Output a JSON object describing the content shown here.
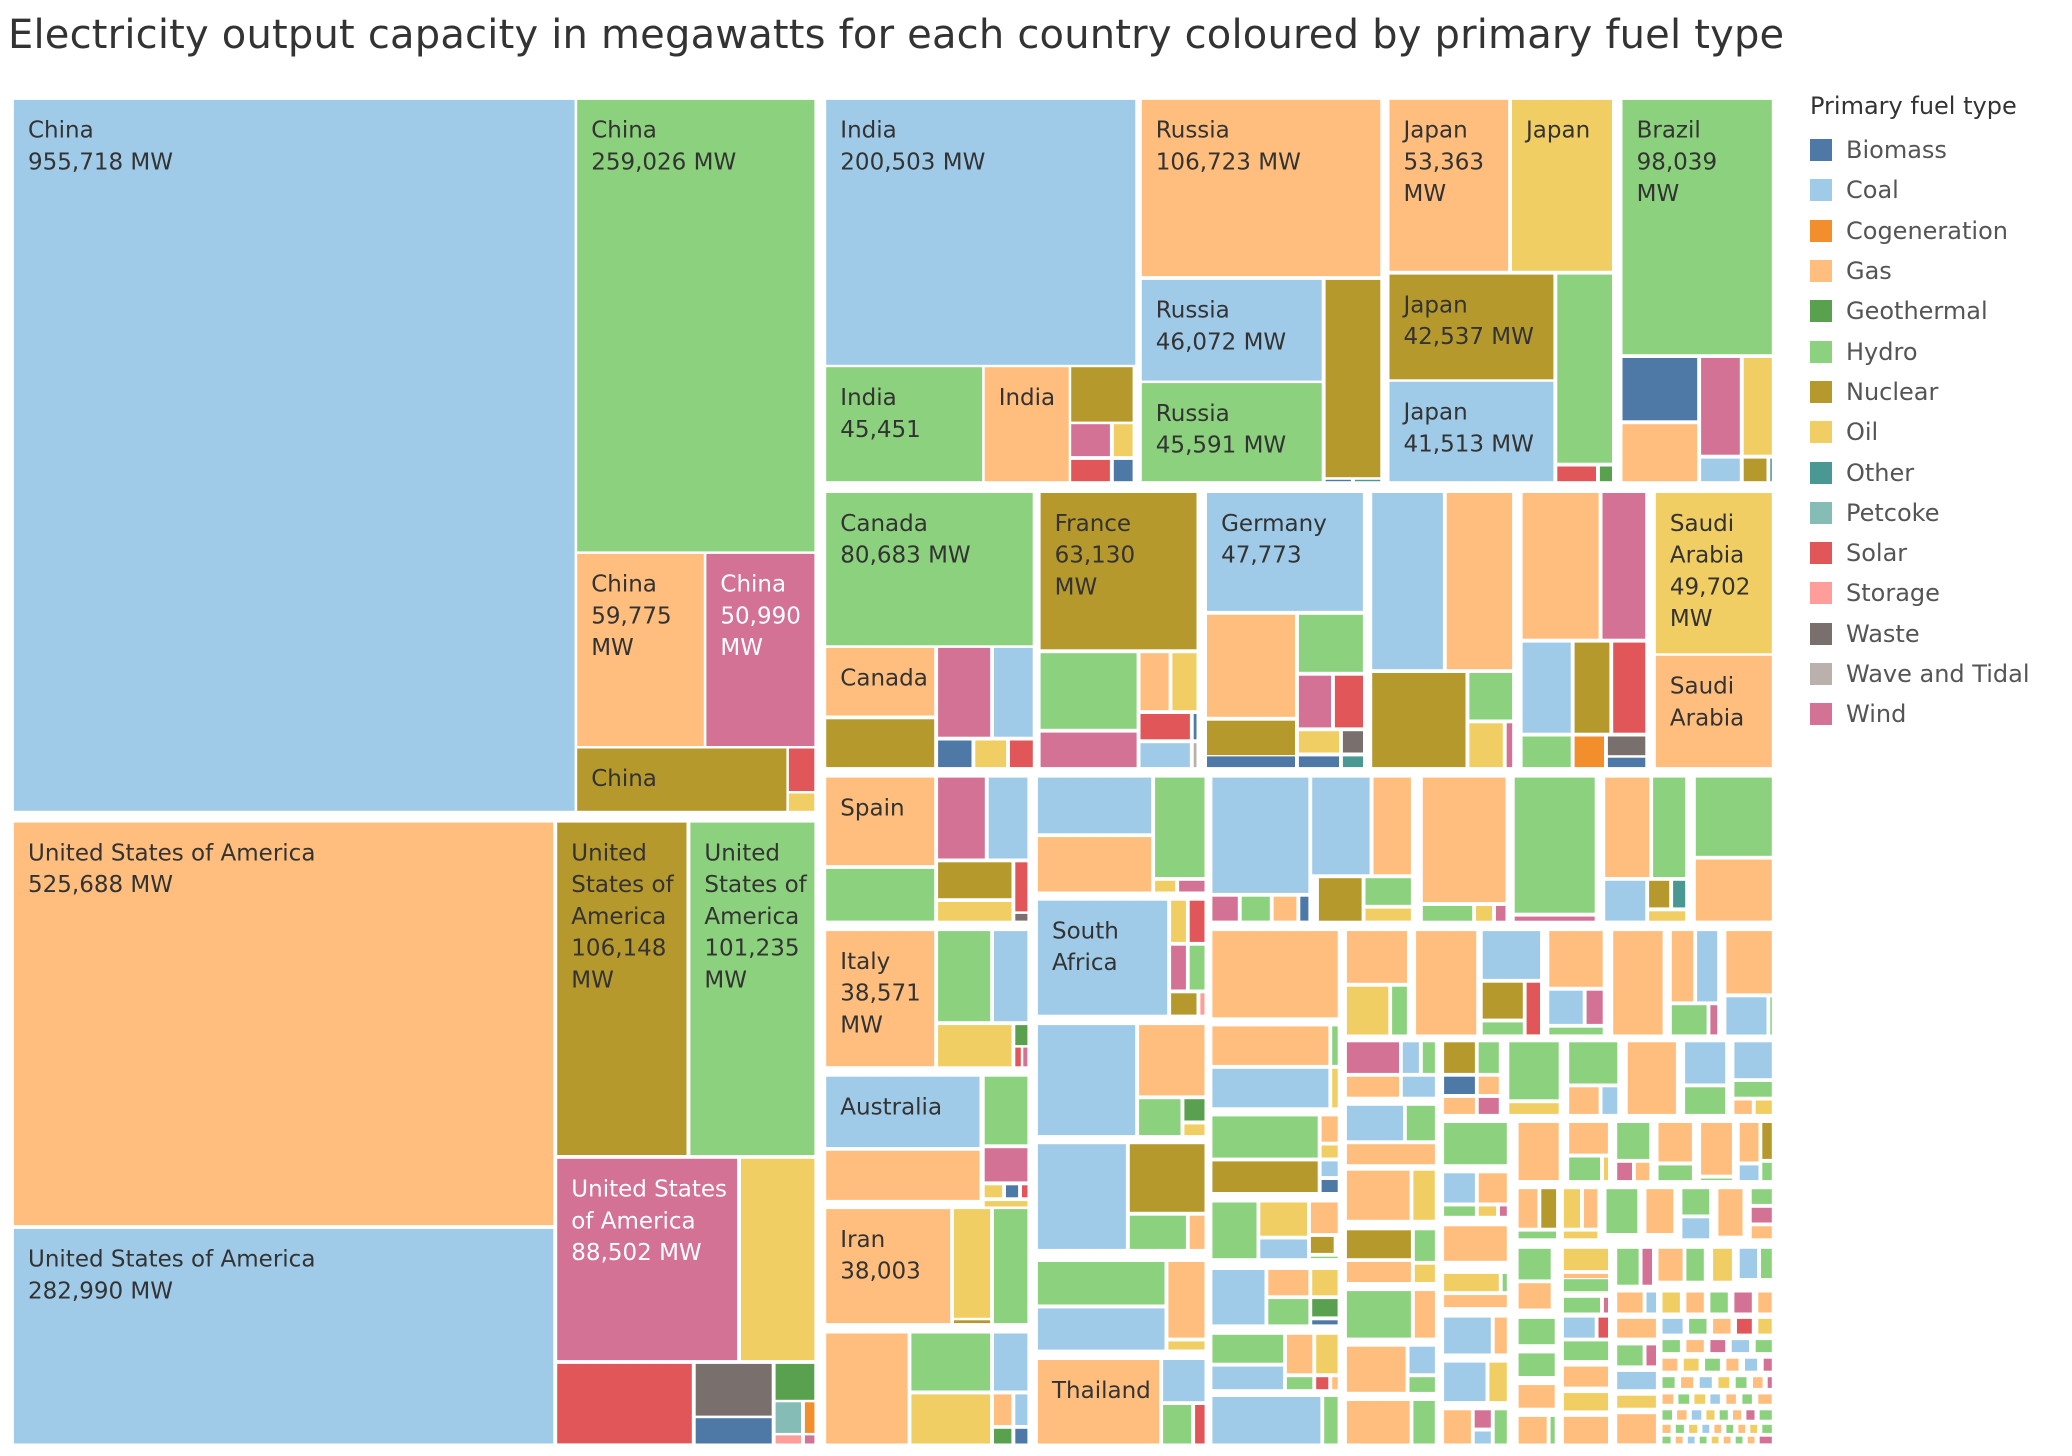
{
  "chart_data": {
    "type": "treemap",
    "title": "Electricity output capacity in megawatts for each country coloured by primary fuel type",
    "unit": "MW",
    "legend": {
      "title": "Primary fuel type",
      "position": "right",
      "items": [
        {
          "name": "Biomass",
          "color": "#4e79a7"
        },
        {
          "name": "Coal",
          "color": "#a0cbe8"
        },
        {
          "name": "Cogeneration",
          "color": "#f28e2b"
        },
        {
          "name": "Gas",
          "color": "#ffbe7d"
        },
        {
          "name": "Geothermal",
          "color": "#59a14f"
        },
        {
          "name": "Hydro",
          "color": "#8cd17d"
        },
        {
          "name": "Nuclear",
          "color": "#b6992d"
        },
        {
          "name": "Oil",
          "color": "#f1ce63"
        },
        {
          "name": "Other",
          "color": "#499894"
        },
        {
          "name": "Petcoke",
          "color": "#86bcb6"
        },
        {
          "name": "Solar",
          "color": "#e15759"
        },
        {
          "name": "Storage",
          "color": "#ff9d9a"
        },
        {
          "name": "Waste",
          "color": "#79706e"
        },
        {
          "name": "Wave and Tidal",
          "color": "#bab0ac"
        },
        {
          "name": "Wind",
          "color": "#d37295"
        }
      ]
    },
    "labeled_values": [
      {
        "country": "China",
        "fuel": "Coal",
        "value": 955718,
        "label": [
          "China",
          "955,718 MW"
        ]
      },
      {
        "country": "China",
        "fuel": "Hydro",
        "value": 259026,
        "label": [
          "China",
          "259,026 MW"
        ]
      },
      {
        "country": "China",
        "fuel": "Gas",
        "value": 59775,
        "label": [
          "China",
          "59,775",
          "MW"
        ]
      },
      {
        "country": "China",
        "fuel": "Wind",
        "value": 50990,
        "label": [
          "China",
          "50,990",
          "MW"
        ]
      },
      {
        "country": "China",
        "fuel": "Nuclear",
        "value": null,
        "label": [
          "China"
        ]
      },
      {
        "country": "United States of America",
        "fuel": "Gas",
        "value": 525688,
        "label": [
          "United States of America",
          "525,688 MW"
        ]
      },
      {
        "country": "United States of America",
        "fuel": "Coal",
        "value": 282990,
        "label": [
          "United States of America",
          "282,990 MW"
        ]
      },
      {
        "country": "United States of America",
        "fuel": "Nuclear",
        "value": 106148,
        "label": [
          "United",
          "States of",
          "America",
          "106,148",
          "MW"
        ]
      },
      {
        "country": "United States of America",
        "fuel": "Hydro",
        "value": 101235,
        "label": [
          "United",
          "States of",
          "America",
          "101,235",
          "MW"
        ]
      },
      {
        "country": "United States of America",
        "fuel": "Wind",
        "value": 88502,
        "label": [
          "United States",
          "of America",
          "88,502 MW"
        ]
      },
      {
        "country": "India",
        "fuel": "Coal",
        "value": 200503,
        "label": [
          "India",
          "200,503 MW"
        ]
      },
      {
        "country": "India",
        "fuel": "Hydro",
        "value": 45451,
        "label": [
          "India",
          "45,451"
        ]
      },
      {
        "country": "India",
        "fuel": "Gas",
        "value": null,
        "label": [
          "India"
        ]
      },
      {
        "country": "Russia",
        "fuel": "Gas",
        "value": 106723,
        "label": [
          "Russia",
          "106,723 MW"
        ]
      },
      {
        "country": "Russia",
        "fuel": "Coal",
        "value": 46072,
        "label": [
          "Russia",
          "46,072 MW"
        ]
      },
      {
        "country": "Russia",
        "fuel": "Hydro",
        "value": 45591,
        "label": [
          "Russia",
          "45,591 MW"
        ]
      },
      {
        "country": "Japan",
        "fuel": "Gas",
        "value": 53363,
        "label": [
          "Japan",
          "53,363",
          "MW"
        ]
      },
      {
        "country": "Japan",
        "fuel": "Oil",
        "value": null,
        "label": [
          "Japan"
        ]
      },
      {
        "country": "Japan",
        "fuel": "Nuclear",
        "value": 42537,
        "label": [
          "Japan",
          "42,537 MW"
        ]
      },
      {
        "country": "Japan",
        "fuel": "Coal",
        "value": 41513,
        "label": [
          "Japan",
          "41,513 MW"
        ]
      },
      {
        "country": "Brazil",
        "fuel": "Hydro",
        "value": 98039,
        "label": [
          "Brazil",
          "98,039",
          "MW"
        ]
      },
      {
        "country": "Canada",
        "fuel": "Hydro",
        "value": 80683,
        "label": [
          "Canada",
          "80,683 MW"
        ]
      },
      {
        "country": "Canada",
        "fuel": "Gas",
        "value": null,
        "label": [
          "Canada"
        ]
      },
      {
        "country": "France",
        "fuel": "Nuclear",
        "value": 63130,
        "label": [
          "France",
          "63,130",
          "MW"
        ]
      },
      {
        "country": "Germany",
        "fuel": "Coal",
        "value": 47773,
        "label": [
          "Germany",
          "47,773"
        ]
      },
      {
        "country": "Saudi Arabia",
        "fuel": "Oil",
        "value": 49702,
        "label": [
          "Saudi",
          "Arabia",
          "49,702",
          "MW"
        ]
      },
      {
        "country": "Saudi Arabia",
        "fuel": "Gas",
        "value": null,
        "label": [
          "Saudi",
          "Arabia"
        ]
      },
      {
        "country": "Spain",
        "fuel": "Gas",
        "value": null,
        "label": [
          "Spain"
        ]
      },
      {
        "country": "Italy",
        "fuel": "Gas",
        "value": 38571,
        "label": [
          "Italy",
          "38,571",
          "MW"
        ]
      },
      {
        "country": "Australia",
        "fuel": "Coal",
        "value": null,
        "label": [
          "Australia"
        ]
      },
      {
        "country": "Iran",
        "fuel": "Gas",
        "value": 38003,
        "label": [
          "Iran",
          "38,003"
        ]
      },
      {
        "country": "South Africa",
        "fuel": "Coal",
        "value": null,
        "label": [
          "South",
          "Africa"
        ]
      },
      {
        "country": "Thailand",
        "fuel": "Gas",
        "value": null,
        "label": [
          "Thailand"
        ]
      }
    ]
  }
}
